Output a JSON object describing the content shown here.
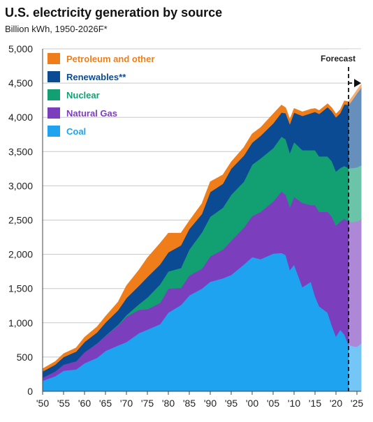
{
  "title": "U.S. electricity generation by source",
  "subtitle": "Billion kWh, 1950-2026F*",
  "forecast_label": "Forecast",
  "chart_data": {
    "type": "area",
    "stacked": true,
    "title": "U.S. electricity generation by source",
    "subtitle": "Billion kWh, 1950-2026F*",
    "ylim": [
      0,
      5000
    ],
    "xlim": [
      1950,
      2026
    ],
    "forecast_start": 2023,
    "y_ticks": [
      0,
      500,
      1000,
      1500,
      2000,
      2500,
      3000,
      3500,
      4000,
      4500,
      5000
    ],
    "y_tick_labels": [
      "0",
      "500",
      "1,000",
      "1,500",
      "2,000",
      "2,500",
      "3,000",
      "3,500",
      "4,000",
      "4,500",
      "5,000"
    ],
    "x_ticks": [
      1950,
      1955,
      1960,
      1965,
      1970,
      1975,
      1980,
      1985,
      1990,
      1995,
      2000,
      2005,
      2010,
      2015,
      2020,
      2025
    ],
    "x_tick_labels": [
      "'50",
      "'55",
      "'60",
      "'65",
      "'70",
      "'75",
      "'80",
      "'85",
      "'90",
      "'95",
      "'00",
      "'05",
      "'10",
      "'15",
      "'20",
      "'25"
    ],
    "x": [
      1950,
      1953,
      1955,
      1958,
      1960,
      1963,
      1965,
      1968,
      1970,
      1973,
      1975,
      1978,
      1980,
      1983,
      1985,
      1988,
      1990,
      1993,
      1995,
      1998,
      2000,
      2002,
      2005,
      2007,
      2008,
      2009,
      2010,
      2012,
      2014,
      2015,
      2016,
      2018,
      2019,
      2020,
      2021,
      2022,
      2023,
      2024,
      2025,
      2026
    ],
    "series": [
      {
        "name": "Coal",
        "color": "#1ea3f0",
        "values": [
          155,
          220,
          300,
          320,
          410,
          490,
          590,
          670,
          720,
          850,
          900,
          980,
          1150,
          1260,
          1400,
          1500,
          1600,
          1650,
          1700,
          1850,
          1960,
          1930,
          2010,
          2020,
          1990,
          1770,
          1850,
          1520,
          1600,
          1390,
          1240,
          1150,
          960,
          800,
          900,
          830,
          680,
          660,
          650,
          700
        ]
      },
      {
        "name": "Natural Gas",
        "color": "#7b3fbe",
        "values": [
          45,
          70,
          90,
          120,
          160,
          210,
          220,
          290,
          370,
          340,
          300,
          310,
          350,
          250,
          290,
          290,
          370,
          420,
          500,
          540,
          600,
          690,
          760,
          900,
          880,
          920,
          990,
          1230,
          1120,
          1330,
          1380,
          1470,
          1590,
          1620,
          1580,
          1690,
          1800,
          1810,
          1830,
          1810
        ]
      },
      {
        "name": "Nuclear",
        "color": "#12a073",
        "values": [
          0,
          0,
          0,
          0,
          0,
          2,
          4,
          13,
          22,
          83,
          170,
          270,
          250,
          290,
          380,
          530,
          580,
          610,
          670,
          670,
          750,
          780,
          780,
          800,
          810,
          790,
          800,
          770,
          800,
          800,
          810,
          810,
          810,
          790,
          780,
          770,
          780,
          790,
          790,
          790
        ]
      },
      {
        "name": "Renewables**",
        "color": "#0a4b94",
        "values": [
          90,
          100,
          110,
          140,
          150,
          160,
          190,
          210,
          250,
          270,
          300,
          290,
          280,
          330,
          300,
          270,
          360,
          350,
          380,
          380,
          320,
          330,
          360,
          350,
          380,
          420,
          430,
          500,
          540,
          560,
          620,
          720,
          730,
          790,
          800,
          900,
          920,
          1000,
          1080,
          1130
        ]
      },
      {
        "name": "Petroleum and other",
        "color": "#ef7e1a",
        "values": [
          40,
          45,
          50,
          55,
          70,
          80,
          90,
          120,
          180,
          230,
          280,
          310,
          280,
          180,
          120,
          150,
          150,
          130,
          100,
          120,
          130,
          120,
          140,
          110,
          80,
          70,
          60,
          60,
          60,
          50,
          50,
          50,
          50,
          50,
          50,
          50,
          50,
          50,
          50,
          50
        ]
      }
    ],
    "legend_order": [
      "Petroleum and other",
      "Renewables**",
      "Nuclear",
      "Natural Gas",
      "Coal"
    ],
    "legend_position": "top-left",
    "grid": true
  }
}
